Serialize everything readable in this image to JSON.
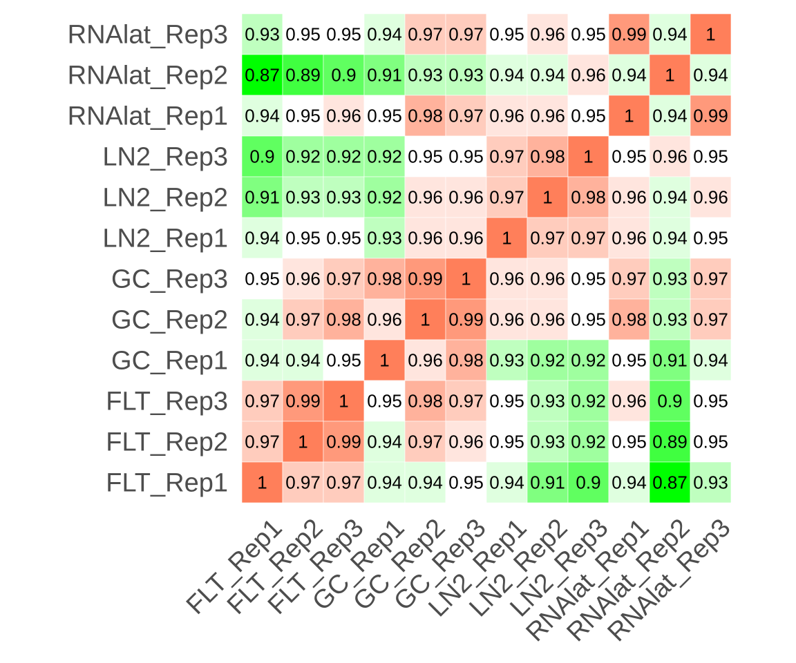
{
  "chart_data": {
    "type": "heatmap",
    "title": "",
    "xlabel": "",
    "ylabel": "",
    "x_labels": [
      "FLT_Rep1",
      "FLT_Rep2",
      "FLT_Rep3",
      "GC_Rep1",
      "GC_Rep2",
      "GC_Rep3",
      "LN2_Rep1",
      "LN2_Rep2",
      "LN2_Rep3",
      "RNAlat_Rep1",
      "RNAlat_Rep2",
      "RNAlat_Rep3"
    ],
    "y_labels_top_to_bottom": [
      "RNAlat_Rep3",
      "RNAlat_Rep2",
      "RNAlat_Rep1",
      "LN2_Rep3",
      "LN2_Rep2",
      "LN2_Rep1",
      "GC_Rep3",
      "GC_Rep2",
      "GC_Rep1",
      "FLT_Rep3",
      "FLT_Rep2",
      "FLT_Rep1"
    ],
    "values_top_to_bottom": [
      [
        0.93,
        0.95,
        0.95,
        0.94,
        0.97,
        0.97,
        0.95,
        0.96,
        0.95,
        0.99,
        0.94,
        1
      ],
      [
        0.87,
        0.89,
        0.9,
        0.91,
        0.93,
        0.93,
        0.94,
        0.94,
        0.96,
        0.94,
        1,
        0.94
      ],
      [
        0.94,
        0.95,
        0.96,
        0.95,
        0.98,
        0.97,
        0.96,
        0.96,
        0.95,
        1,
        0.94,
        0.99
      ],
      [
        0.9,
        0.92,
        0.92,
        0.92,
        0.95,
        0.95,
        0.97,
        0.98,
        1,
        0.95,
        0.96,
        0.95
      ],
      [
        0.91,
        0.93,
        0.93,
        0.92,
        0.96,
        0.96,
        0.97,
        1,
        0.98,
        0.96,
        0.94,
        0.96
      ],
      [
        0.94,
        0.95,
        0.95,
        0.93,
        0.96,
        0.96,
        1,
        0.97,
        0.97,
        0.96,
        0.94,
        0.95
      ],
      [
        0.95,
        0.96,
        0.97,
        0.98,
        0.99,
        1,
        0.96,
        0.96,
        0.95,
        0.97,
        0.93,
        0.97
      ],
      [
        0.94,
        0.97,
        0.98,
        0.96,
        1,
        0.99,
        0.96,
        0.96,
        0.95,
        0.98,
        0.93,
        0.97
      ],
      [
        0.94,
        0.94,
        0.95,
        1,
        0.96,
        0.98,
        0.93,
        0.92,
        0.92,
        0.95,
        0.91,
        0.94
      ],
      [
        0.97,
        0.99,
        1,
        0.95,
        0.98,
        0.97,
        0.95,
        0.93,
        0.92,
        0.96,
        0.9,
        0.95
      ],
      [
        0.97,
        1,
        0.99,
        0.94,
        0.97,
        0.96,
        0.95,
        0.93,
        0.92,
        0.95,
        0.89,
        0.95
      ],
      [
        1,
        0.97,
        0.97,
        0.94,
        0.94,
        0.95,
        0.94,
        0.91,
        0.9,
        0.94,
        0.87,
        0.93
      ]
    ],
    "color_scale": {
      "low_value": 0.87,
      "mid_value": 0.95,
      "high_value": 1,
      "low_color": "#00ff00",
      "mid_color": "#ffffff",
      "high_color": "#ff7f5a"
    },
    "grid": false,
    "legend": "none"
  }
}
